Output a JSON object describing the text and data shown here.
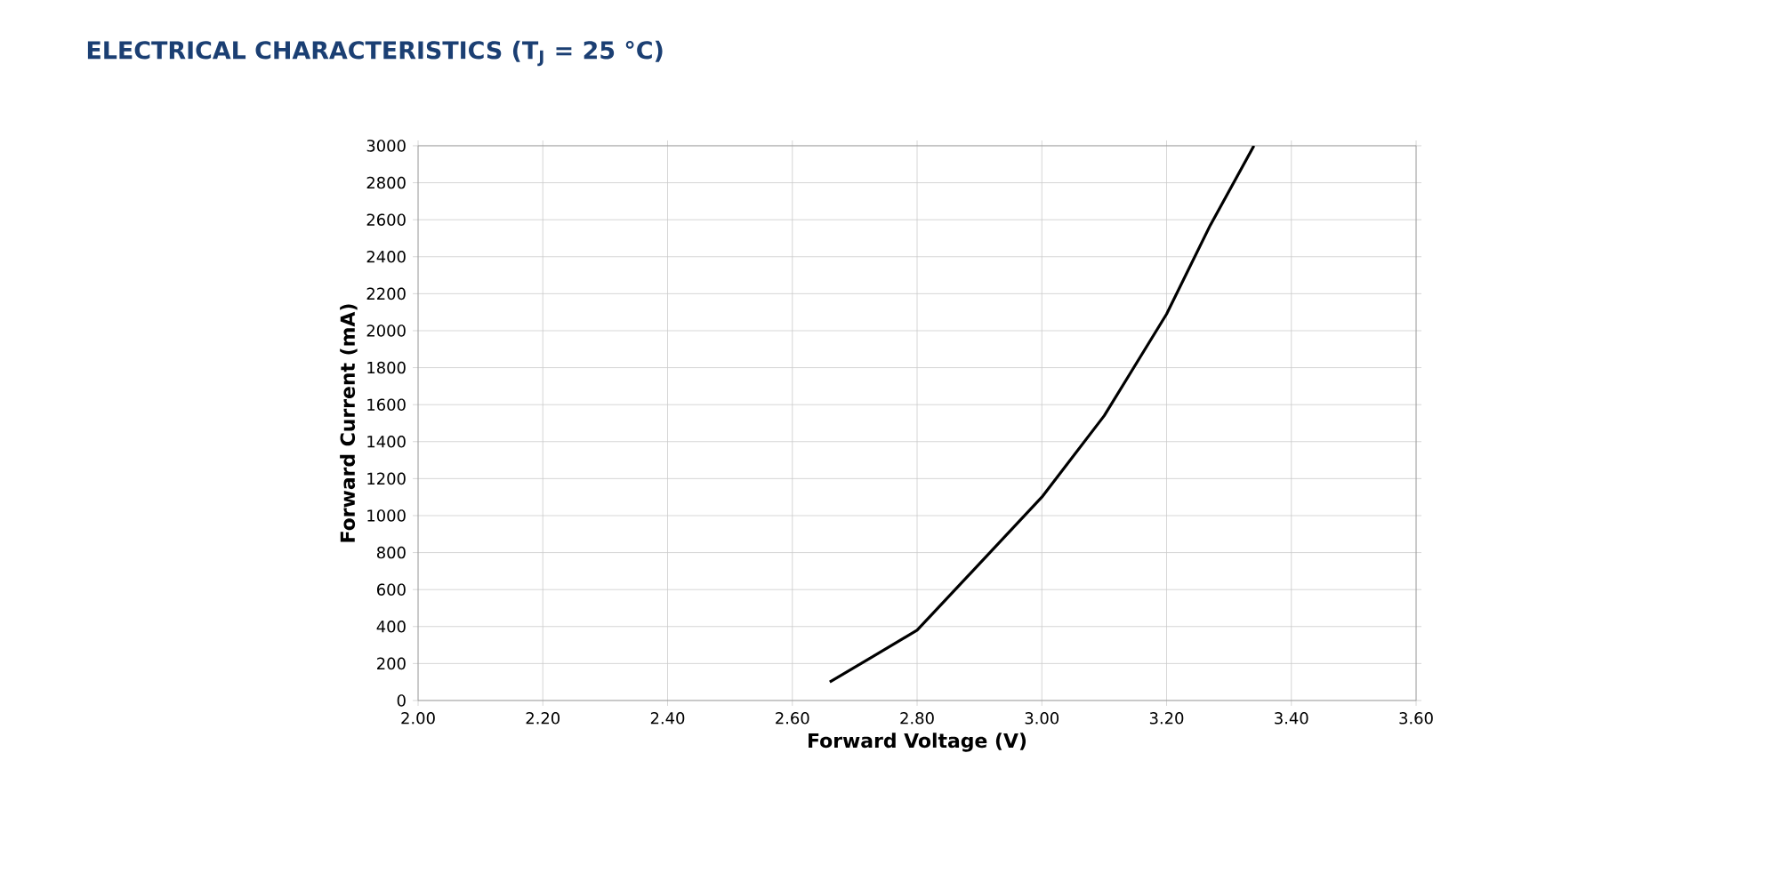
{
  "chart_data": {
    "type": "line",
    "title": "ELECTRICAL CHARACTERISTICS (T$_{J}$ = 25 °C)",
    "xlabel": "Forward Voltage (V)",
    "ylabel": "Forward Current (mA)",
    "series": [
      {
        "color": "#000000",
        "x": [
          2.66,
          2.73,
          2.8,
          2.9,
          3.0,
          3.1,
          3.2,
          3.27,
          3.34
        ],
        "values": [
          100,
          240,
          380,
          740,
          1100,
          1540,
          2090,
          2570,
          3000
        ]
      }
    ],
    "xlim": [
      2.0,
      3.6
    ],
    "ylim": [
      0,
      3000
    ],
    "xticks": [
      {
        "value": 2.0,
        "label": "2.00"
      },
      {
        "value": 2.2,
        "label": "2.20"
      },
      {
        "value": 2.4,
        "label": "2.40"
      },
      {
        "value": 2.6,
        "label": "2.60"
      },
      {
        "value": 2.8,
        "label": "2.80"
      },
      {
        "value": 3.0,
        "label": "3.00"
      },
      {
        "value": 3.2,
        "label": "3.20"
      },
      {
        "value": 3.4,
        "label": "3.40"
      },
      {
        "value": 3.6,
        "label": "3.60"
      }
    ],
    "yticks": [
      0,
      200,
      400,
      600,
      800,
      1000,
      1200,
      1400,
      1600,
      1800,
      2000,
      2200,
      2400,
      2600,
      2800,
      3000
    ],
    "grid": true,
    "marker": "none",
    "line_style": "solid"
  }
}
